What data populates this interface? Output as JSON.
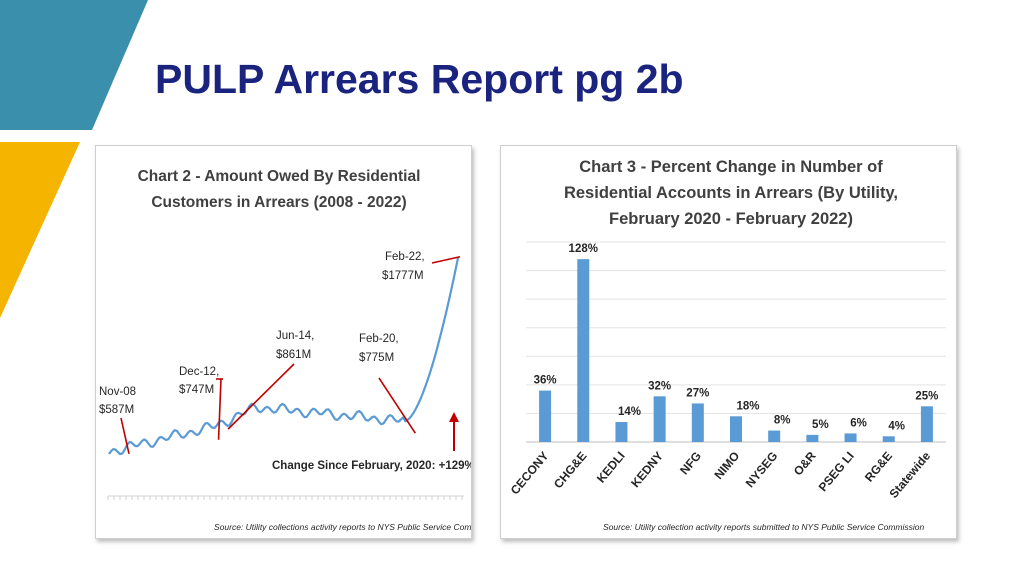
{
  "slide": {
    "title": "PULP Arrears Report pg 2b",
    "colors": {
      "teal": "#3a8fad",
      "gold": "#f4b400",
      "title_navy": "#1a237e"
    }
  },
  "chart_data": [
    {
      "type": "line",
      "title_lines": [
        "Chart 2 - Amount Owed By Residential",
        "Customers in Arrears (2008 - 2022)"
      ],
      "xlabel": "",
      "ylabel": "",
      "unit": "$M",
      "series_color": "#5b9bd5",
      "grid": false,
      "series": [
        {
          "x": [
            "Nov-08",
            "Dec-12",
            "Jun-14",
            "Feb-20",
            "Feb-22"
          ],
          "y": [
            587,
            747,
            861,
            775,
            1777
          ]
        }
      ],
      "annotations": [
        {
          "date": "Nov-08",
          "value_label": "$587M"
        },
        {
          "date": "Dec-12,",
          "value_label": "$747M"
        },
        {
          "date": "Jun-14,",
          "value_label": "$861M"
        },
        {
          "date": "Feb-20,",
          "value_label": "$775M"
        },
        {
          "date": "Feb-22,",
          "value_label": "$1777M"
        }
      ],
      "change_note": "Change Since February, 2020: +129%",
      "source": "Source: Utility collections activity reports to NYS Public Service Commission"
    },
    {
      "type": "bar",
      "title_lines": [
        "Chart 3 - Percent Change in Number of",
        "Residential Accounts in Arrears (By Utility,",
        "February 2020 - February 2022)"
      ],
      "xlabel": "",
      "ylabel": "",
      "bar_color": "#5b9bd5",
      "grid": true,
      "ylim": [
        0,
        140
      ],
      "categories": [
        "CECONY",
        "CHG&E",
        "KEDLI",
        "KEDNY",
        "NFG",
        "NIMO",
        "NYSEG",
        "O&R",
        "PSEG LI",
        "RG&E",
        "Statewide"
      ],
      "values": [
        36,
        128,
        14,
        32,
        27,
        18,
        8,
        5,
        6,
        4,
        25
      ],
      "data_labels": [
        "36%",
        "128%",
        "14%",
        "32%",
        "27%",
        "18%",
        "8%",
        "5%",
        "6%",
        "4%",
        "25%"
      ],
      "source": "Source: Utility collection activity reports submitted to NYS Public Service Commission"
    }
  ]
}
